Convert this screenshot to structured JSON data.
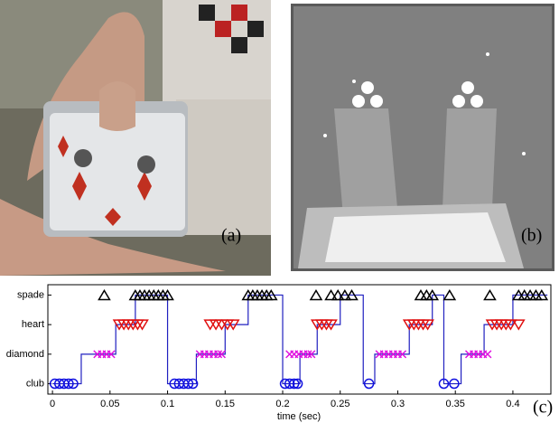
{
  "figure": {
    "labels": [
      "(a)",
      "(b)",
      "(c)"
    ]
  },
  "chart_data": {
    "type": "scatter",
    "xlabel": "time (sec)",
    "xlim": [
      -0.004,
      0.433
    ],
    "xticks": [
      0,
      0.05,
      0.1,
      0.15,
      0.2,
      0.25,
      0.3,
      0.35,
      0.4
    ],
    "ylim": [
      -0.35,
      3.35
    ],
    "yticks": [
      {
        "value": 0,
        "label": "club"
      },
      {
        "value": 1,
        "label": "diamond"
      },
      {
        "value": 2,
        "label": "heart"
      },
      {
        "value": 3,
        "label": "spade"
      }
    ],
    "line": {
      "color": "#2020c0",
      "x": [
        0,
        0.025,
        0.025,
        0.055,
        0.055,
        0.072,
        0.072,
        0.1,
        0.1,
        0.125,
        0.125,
        0.15,
        0.15,
        0.17,
        0.17,
        0.2,
        0.2,
        0.215,
        0.215,
        0.23,
        0.23,
        0.25,
        0.25,
        0.27,
        0.27,
        0.28,
        0.28,
        0.31,
        0.31,
        0.33,
        0.33,
        0.34,
        0.34,
        0.355,
        0.355,
        0.375,
        0.375,
        0.4,
        0.4,
        0.43
      ],
      "values": [
        0,
        0,
        1,
        1,
        2,
        2,
        3,
        3,
        0,
        0,
        1,
        1,
        2,
        2,
        3,
        3,
        0,
        0,
        1,
        1,
        2,
        2,
        3,
        3,
        0,
        0,
        1,
        1,
        2,
        2,
        3,
        3,
        0,
        0,
        1,
        1,
        2,
        2,
        3,
        3
      ]
    },
    "series": [
      {
        "marker": "circle",
        "color": "#1010e0",
        "x": [
          0.002,
          0.006,
          0.01,
          0.014,
          0.018,
          0.106,
          0.11,
          0.114,
          0.118,
          0.122,
          0.202,
          0.206,
          0.21,
          0.213,
          0.275,
          0.34,
          0.349
        ],
        "values": [
          0,
          0,
          0,
          0,
          0,
          0,
          0,
          0,
          0,
          0,
          0,
          0,
          0,
          0,
          0,
          0,
          0
        ]
      },
      {
        "marker": "cross",
        "color": "#e010e0",
        "x": [
          0.039,
          0.043,
          0.047,
          0.051,
          0.128,
          0.132,
          0.136,
          0.14,
          0.144,
          0.147,
          0.206,
          0.21,
          0.214,
          0.218,
          0.222,
          0.225,
          0.284,
          0.288,
          0.292,
          0.296,
          0.3,
          0.304,
          0.362,
          0.366,
          0.37,
          0.374,
          0.378
        ],
        "values": [
          1,
          1,
          1,
          1,
          1,
          1,
          1,
          1,
          1,
          1,
          1,
          1,
          1,
          1,
          1,
          1,
          1,
          1,
          1,
          1,
          1,
          1,
          1,
          1,
          1,
          1,
          1
        ]
      },
      {
        "marker": "down",
        "color": "#e01010",
        "x": [
          0.058,
          0.062,
          0.066,
          0.07,
          0.074,
          0.078,
          0.137,
          0.142,
          0.147,
          0.152,
          0.157,
          0.23,
          0.234,
          0.238,
          0.242,
          0.31,
          0.314,
          0.318,
          0.322,
          0.326,
          0.382,
          0.386,
          0.39,
          0.394,
          0.398,
          0.405
        ],
        "values": [
          2,
          2,
          2,
          2,
          2,
          2,
          2,
          2,
          2,
          2,
          2,
          2,
          2,
          2,
          2,
          2,
          2,
          2,
          2,
          2,
          2,
          2,
          2,
          2,
          2,
          2
        ]
      },
      {
        "marker": "up",
        "color": "#000000",
        "x": [
          0.045,
          0.072,
          0.076,
          0.08,
          0.084,
          0.088,
          0.092,
          0.096,
          0.1,
          0.17,
          0.174,
          0.178,
          0.182,
          0.186,
          0.19,
          0.229,
          0.242,
          0.248,
          0.254,
          0.26,
          0.32,
          0.325,
          0.33,
          0.345,
          0.38,
          0.405,
          0.41,
          0.415,
          0.42,
          0.425
        ],
        "values": [
          3,
          3,
          3,
          3,
          3,
          3,
          3,
          3,
          3,
          3,
          3,
          3,
          3,
          3,
          3,
          3,
          3,
          3,
          3,
          3,
          3,
          3,
          3,
          3,
          3,
          3,
          3,
          3,
          3,
          3
        ]
      }
    ]
  }
}
